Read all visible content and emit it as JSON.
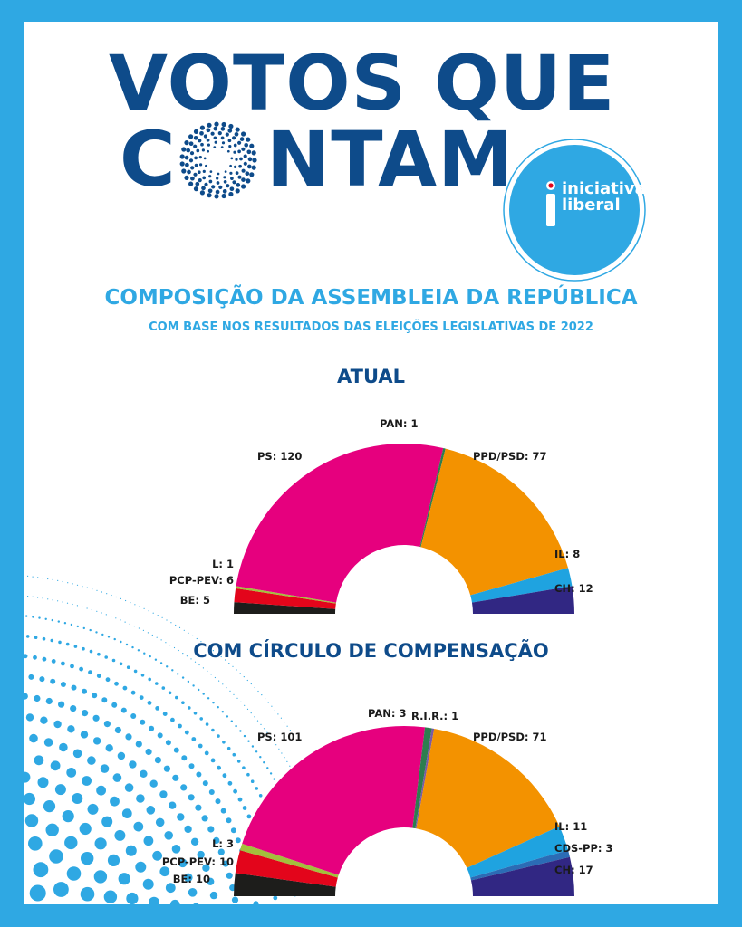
{
  "header": {
    "title_line1": "VOTOS QUE",
    "title_line2_first": "C",
    "title_line2_rest": "NTAM",
    "logo": {
      "icon": "iniciativa-liberal-i-icon",
      "line1": "iniciativa",
      "line2": "liberal"
    }
  },
  "subtitle": "COMPOSIÇÃO DA ASSEMBLEIA DA REPÚBLICA",
  "subsubtitle": "COM BASE NOS RESULTADOS DAS ELEIÇÕES LEGISLATIVAS DE 2022",
  "colors": {
    "frame": "#2fa8e3",
    "headline": "#0e4b8a",
    "accent": "#2fa8e3"
  },
  "chart_data": [
    {
      "type": "pie",
      "variant": "semicircle",
      "title": "ATUAL",
      "slices": [
        {
          "party": "BE",
          "label": "BE: 5",
          "value": 5,
          "color": "#1d1d1b"
        },
        {
          "party": "PCP-PEV",
          "label": "PCP-PEV: 6",
          "value": 6,
          "color": "#e3051b"
        },
        {
          "party": "L",
          "label": "L: 1",
          "value": 1,
          "color": "#a3c03c"
        },
        {
          "party": "PS",
          "label": "PS: 120",
          "value": 120,
          "color": "#e6007e"
        },
        {
          "party": "PAN",
          "label": "PAN: 1",
          "value": 1,
          "color": "#2e7d4f"
        },
        {
          "party": "PPD/PSD",
          "label": "PPD/PSD: 77",
          "value": 77,
          "color": "#f39200"
        },
        {
          "party": "IL",
          "label": "IL: 8",
          "value": 8,
          "color": "#1fa3e0"
        },
        {
          "party": "CH",
          "label": "CH: 12",
          "value": 12,
          "color": "#312783"
        }
      ]
    },
    {
      "type": "pie",
      "variant": "semicircle",
      "title": "COM CÍRCULO DE COMPENSAÇÃO",
      "slices": [
        {
          "party": "BE",
          "label": "BE: 10",
          "value": 10,
          "color": "#1d1d1b"
        },
        {
          "party": "PCP-PEV",
          "label": "PCP-PEV: 10",
          "value": 10,
          "color": "#e3051b"
        },
        {
          "party": "L",
          "label": "L: 3",
          "value": 3,
          "color": "#a3c03c"
        },
        {
          "party": "PS",
          "label": "PS: 101",
          "value": 101,
          "color": "#e6007e"
        },
        {
          "party": "PAN",
          "label": "PAN: 3",
          "value": 3,
          "color": "#2e7d4f"
        },
        {
          "party": "R.I.R.",
          "label": "R.I.R.: 1",
          "value": 1,
          "color": "#7a5aa6"
        },
        {
          "party": "PPD/PSD",
          "label": "PPD/PSD: 71",
          "value": 71,
          "color": "#f39200"
        },
        {
          "party": "IL",
          "label": "IL: 11",
          "value": 11,
          "color": "#1fa3e0"
        },
        {
          "party": "CDS-PP",
          "label": "CDS-PP: 3",
          "value": 3,
          "color": "#2b6cb5"
        },
        {
          "party": "CH",
          "label": "CH: 17",
          "value": 17,
          "color": "#312783"
        }
      ]
    }
  ]
}
